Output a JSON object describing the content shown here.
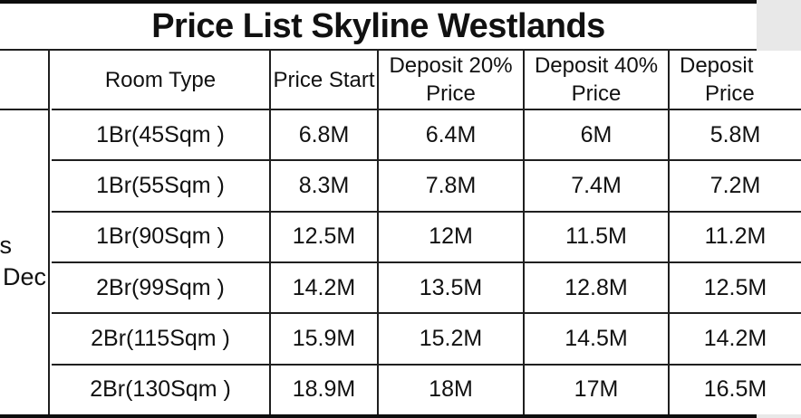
{
  "title": "Price List Skyline Westlands",
  "left_margin_note": {
    "line1": "s",
    "line2": "Dec"
  },
  "table": {
    "columns": {
      "room_type": "Room Type",
      "price_start": "Price Start",
      "deposit_20": "Deposit 20%\nPrice",
      "deposit_40": "Deposit 40%\nPrice",
      "deposit_last_line1": "Deposit",
      "deposit_last_line2": "Price"
    },
    "rows": [
      {
        "room_type": "1Br(45Sqm )",
        "price_start": "6.8M",
        "deposit_20": "6.4M",
        "deposit_40": "6M",
        "deposit_last": "5.8M"
      },
      {
        "room_type": "1Br(55Sqm )",
        "price_start": "8.3M",
        "deposit_20": "7.8M",
        "deposit_40": "7.4M",
        "deposit_last": "7.2M"
      },
      {
        "room_type": "1Br(90Sqm )",
        "price_start": "12.5M",
        "deposit_20": "12M",
        "deposit_40": "11.5M",
        "deposit_last": "11.2M"
      },
      {
        "room_type": "2Br(99Sqm )",
        "price_start": "14.2M",
        "deposit_20": "13.5M",
        "deposit_40": "12.8M",
        "deposit_last": "12.5M"
      },
      {
        "room_type": "2Br(115Sqm )",
        "price_start": "15.9M",
        "deposit_20": "15.2M",
        "deposit_40": "14.5M",
        "deposit_last": "14.2M"
      },
      {
        "room_type": "2Br(130Sqm )",
        "price_start": "18.9M",
        "deposit_20": "18M",
        "deposit_40": "17M",
        "deposit_last": "16.5M"
      }
    ]
  },
  "colors": {
    "text": "#111111",
    "grid_line": "#1f1f1f",
    "outer_border": "#0d0d0d",
    "background": "#ffffff"
  }
}
